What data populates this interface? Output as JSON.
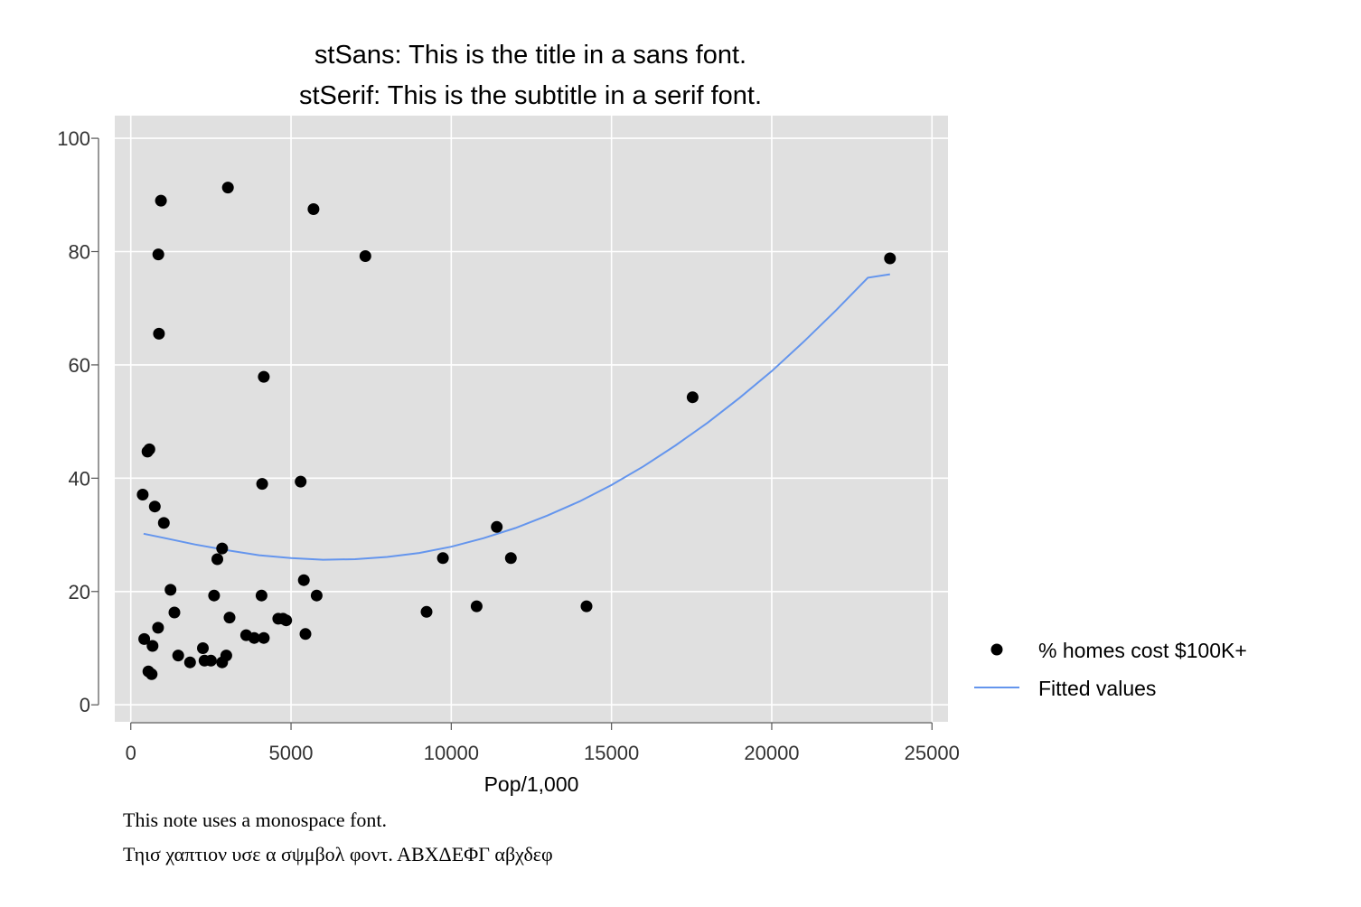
{
  "chart_data": {
    "type": "scatter",
    "title": "stSans: This is the title in a sans font.",
    "subtitle": "stSerif: This is the subtitle in a serif font.",
    "xlabel": "Pop/1,000",
    "ylabel": "",
    "xlim": [
      -500,
      25500
    ],
    "ylim": [
      -3,
      104
    ],
    "x_ticks": [
      0,
      5000,
      10000,
      15000,
      20000,
      25000
    ],
    "y_ticks": [
      0,
      20,
      40,
      60,
      80,
      100
    ],
    "grid": true,
    "legend_position": "right",
    "notes": [
      "This note uses a monospace font.",
      "Τηισ χαπτιον υσε α σψμβολ φοντ. ΑΒΧΔΕΦΓ αβχδεφ"
    ],
    "colors": {
      "plot_bg": "#e0e0e0",
      "grid": "#ffffff",
      "points": "#000000",
      "fit_line": "#6495ed"
    },
    "series": [
      {
        "name": "% homes cost $100K+",
        "type": "scatter",
        "x": [
          940,
          3030,
          5700,
          860,
          7320,
          880,
          4150,
          580,
          520,
          4100,
          5300,
          370,
          750,
          1030,
          2850,
          2700,
          1240,
          2600,
          4080,
          5800,
          1360,
          3080,
          850,
          4600,
          4750,
          4850,
          5450,
          5400,
          3600,
          3850,
          4150,
          420,
          680,
          1480,
          2250,
          2300,
          2500,
          2980,
          1850,
          2850,
          550,
          650,
          9230,
          10790,
          14220,
          9740,
          11860,
          11420,
          17530,
          23690
        ],
        "y": [
          89,
          91.3,
          87.5,
          79.5,
          79.2,
          65.5,
          57.9,
          45.1,
          44.7,
          39,
          39.4,
          37.1,
          35,
          32.1,
          27.6,
          25.7,
          20.3,
          19.3,
          19.3,
          19.3,
          16.3,
          15.4,
          13.6,
          15.2,
          15.2,
          14.9,
          12.5,
          22,
          12.3,
          11.8,
          11.8,
          11.6,
          10.4,
          8.7,
          10,
          7.8,
          7.8,
          8.7,
          7.5,
          7.5,
          5.9,
          5.4,
          16.4,
          17.4,
          17.4,
          25.9,
          25.9,
          31.4,
          54.3,
          78.8
        ]
      },
      {
        "name": "Fitted values",
        "type": "line",
        "x": [
          400,
          1000,
          2000,
          3000,
          4000,
          5000,
          6000,
          7000,
          8000,
          9000,
          10000,
          11000,
          12000,
          13000,
          14000,
          15000,
          16000,
          17000,
          18000,
          19000,
          20000,
          21000,
          22000,
          23000,
          23690
        ],
        "y": [
          30.2,
          29.5,
          28.3,
          27.3,
          26.4,
          25.9,
          25.6,
          25.7,
          26.1,
          26.8,
          27.9,
          29.4,
          31.2,
          33.4,
          35.9,
          38.8,
          42.1,
          45.8,
          49.8,
          54.2,
          58.9,
          64.1,
          69.6,
          75.4,
          76
        ]
      }
    ]
  }
}
